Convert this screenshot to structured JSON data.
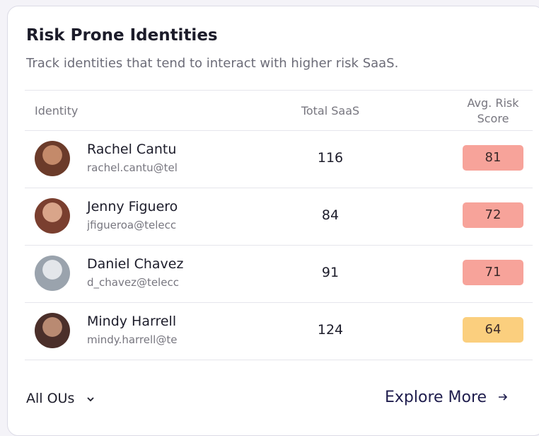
{
  "header": {
    "title": "Risk Prone Identities",
    "subtitle": "Track identities that tend to interact with higher risk SaaS."
  },
  "table": {
    "columns": [
      "Identity",
      "Total SaaS",
      "Avg. Risk Score"
    ],
    "rows": [
      {
        "name": "Rachel Cantu",
        "email": "rachel.cantu@tel",
        "total_saas": 116,
        "score": 81,
        "badge_color": "#f7a39a"
      },
      {
        "name": "Jenny Figuero",
        "email": "jfigueroa@telecc",
        "total_saas": 84,
        "score": 72,
        "badge_color": "#f7a39a"
      },
      {
        "name": "Daniel Chavez",
        "email": "d_chavez@telecc",
        "total_saas": 91,
        "score": 71,
        "badge_color": "#f7a39a"
      },
      {
        "name": "Mindy Harrell",
        "email": "mindy.harrell@te",
        "total_saas": 124,
        "score": 64,
        "badge_color": "#fbcf7e"
      }
    ]
  },
  "footer": {
    "filter": "All OUs",
    "link": "Explore More"
  }
}
